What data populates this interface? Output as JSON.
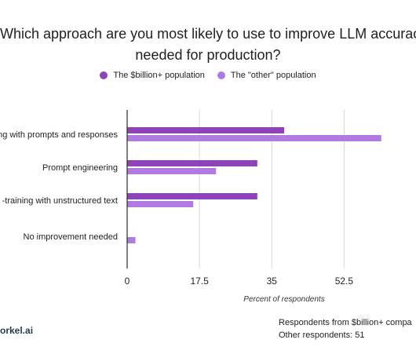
{
  "title_lines": [
    "Which approach are you most likely to use to improve LLM accuracy",
    "needed for production?"
  ],
  "footer": {
    "brand": "orkel.ai",
    "notes": [
      "Respondents from $billion+ compa",
      "Other respondents: 51"
    ]
  },
  "chart_data": {
    "type": "bar",
    "orientation": "horizontal",
    "categories": [
      "ng with prompts and responses",
      "Prompt engineering",
      "-training with unstructured text",
      "No improvement needed"
    ],
    "series": [
      {
        "name": "The $billion+ population",
        "color": "#8e44b8",
        "values": [
          38,
          31.5,
          31.5,
          0
        ]
      },
      {
        "name": "The \"other\" population",
        "color": "#b07be0",
        "values": [
          61.5,
          21.5,
          16,
          2
        ]
      }
    ],
    "xlim": [
      0,
      68
    ],
    "xticks": [
      "0",
      "17.5",
      "35",
      "52.5"
    ],
    "xtick_values": [
      0,
      17.5,
      35,
      52.5
    ],
    "xlabel": "Percent of respondents",
    "grid": true,
    "legend_position": "top"
  }
}
